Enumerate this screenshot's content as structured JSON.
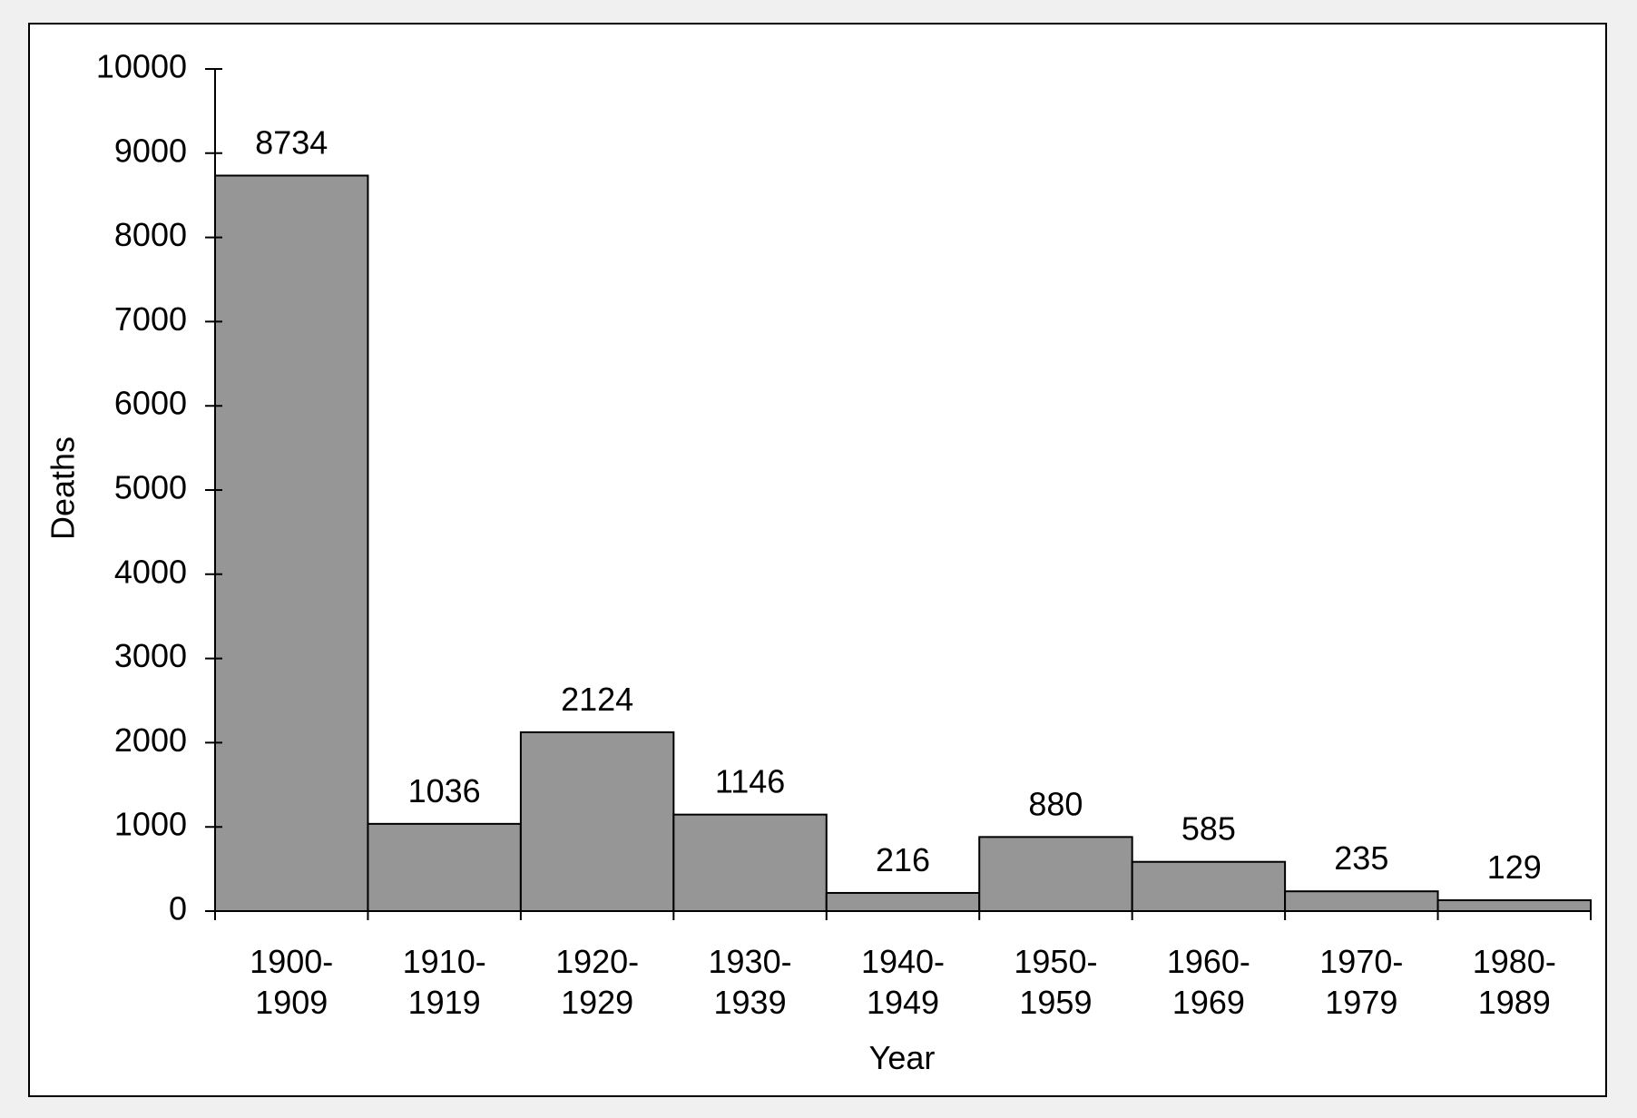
{
  "chart_data": {
    "type": "bar",
    "title": "",
    "xlabel": "Year",
    "ylabel": "Deaths",
    "ylim": [
      0,
      10000
    ],
    "yticks": [
      "0",
      "1000",
      "2000",
      "3000",
      "4000",
      "5000",
      "6000",
      "7000",
      "8000",
      "9000",
      "10000"
    ],
    "categories": [
      [
        "1900-",
        "1909"
      ],
      [
        "1910-",
        "1919"
      ],
      [
        "1920-",
        "1929"
      ],
      [
        "1930-",
        "1939"
      ],
      [
        "1940-",
        "1949"
      ],
      [
        "1950-",
        "1959"
      ],
      [
        "1960-",
        "1969"
      ],
      [
        "1970-",
        "1979"
      ],
      [
        "1980-",
        "1989"
      ]
    ],
    "values": [
      8734,
      1036,
      2124,
      1146,
      216,
      880,
      585,
      235,
      129
    ],
    "bar_color": "#969696",
    "grid": false,
    "legend": "none"
  }
}
